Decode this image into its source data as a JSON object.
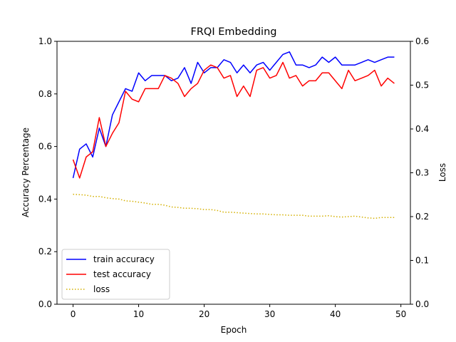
{
  "chart_data": {
    "type": "line",
    "title": "FRQI Embedding",
    "xlabel": "Epoch",
    "ylabel": "Accuracy Percentage",
    "y2label": "Loss",
    "xlim": [
      -2.45,
      51.45
    ],
    "ylim": [
      0,
      1.0
    ],
    "y2lim": [
      0,
      0.6
    ],
    "xticks": [
      "0",
      "10",
      "20",
      "30",
      "40",
      "50"
    ],
    "yticks": [
      "0.0",
      "0.2",
      "0.4",
      "0.6",
      "0.8",
      "1.0"
    ],
    "y2ticks": [
      "0.0",
      "0.1",
      "0.2",
      "0.3",
      "0.4",
      "0.5",
      "0.6"
    ],
    "grid": false,
    "legend_position": "lower-left",
    "x": [
      0,
      1,
      2,
      3,
      4,
      5,
      6,
      7,
      8,
      9,
      10,
      11,
      12,
      13,
      14,
      15,
      16,
      17,
      18,
      19,
      20,
      21,
      22,
      23,
      24,
      25,
      26,
      27,
      28,
      29,
      30,
      31,
      32,
      33,
      34,
      35,
      36,
      37,
      38,
      39,
      40,
      41,
      42,
      43,
      44,
      45,
      46,
      47,
      48,
      49
    ],
    "series": [
      {
        "name": "train accuracy",
        "axis": "left",
        "color": "#0000ff",
        "style": "solid",
        "values": [
          0.48,
          0.59,
          0.61,
          0.56,
          0.67,
          0.6,
          0.72,
          0.77,
          0.82,
          0.81,
          0.88,
          0.85,
          0.87,
          0.87,
          0.87,
          0.85,
          0.86,
          0.9,
          0.84,
          0.92,
          0.88,
          0.9,
          0.9,
          0.93,
          0.92,
          0.88,
          0.91,
          0.88,
          0.91,
          0.92,
          0.89,
          0.92,
          0.95,
          0.96,
          0.91,
          0.91,
          0.9,
          0.91,
          0.94,
          0.92,
          0.94,
          0.91,
          0.91,
          0.91,
          0.92,
          0.93,
          0.92,
          0.93,
          0.94,
          0.94
        ]
      },
      {
        "name": "test accuracy",
        "axis": "left",
        "color": "#ff0000",
        "style": "solid",
        "values": [
          0.55,
          0.48,
          0.56,
          0.58,
          0.71,
          0.6,
          0.65,
          0.69,
          0.81,
          0.78,
          0.77,
          0.82,
          0.82,
          0.82,
          0.87,
          0.86,
          0.84,
          0.79,
          0.82,
          0.84,
          0.89,
          0.91,
          0.9,
          0.86,
          0.87,
          0.79,
          0.83,
          0.79,
          0.89,
          0.9,
          0.86,
          0.87,
          0.92,
          0.86,
          0.87,
          0.83,
          0.85,
          0.85,
          0.88,
          0.88,
          0.85,
          0.82,
          0.89,
          0.85,
          0.86,
          0.87,
          0.89,
          0.83,
          0.86,
          0.84
        ]
      },
      {
        "name": "loss",
        "axis": "right",
        "color": "#d4b000",
        "style": "dotted",
        "values": [
          0.251,
          0.25,
          0.249,
          0.246,
          0.246,
          0.243,
          0.241,
          0.24,
          0.236,
          0.235,
          0.233,
          0.231,
          0.228,
          0.228,
          0.226,
          0.222,
          0.221,
          0.219,
          0.219,
          0.218,
          0.216,
          0.216,
          0.214,
          0.21,
          0.21,
          0.209,
          0.208,
          0.207,
          0.206,
          0.206,
          0.205,
          0.204,
          0.204,
          0.203,
          0.203,
          0.203,
          0.201,
          0.201,
          0.201,
          0.202,
          0.2,
          0.199,
          0.2,
          0.201,
          0.199,
          0.197,
          0.196,
          0.198,
          0.198,
          0.198
        ]
      }
    ]
  }
}
